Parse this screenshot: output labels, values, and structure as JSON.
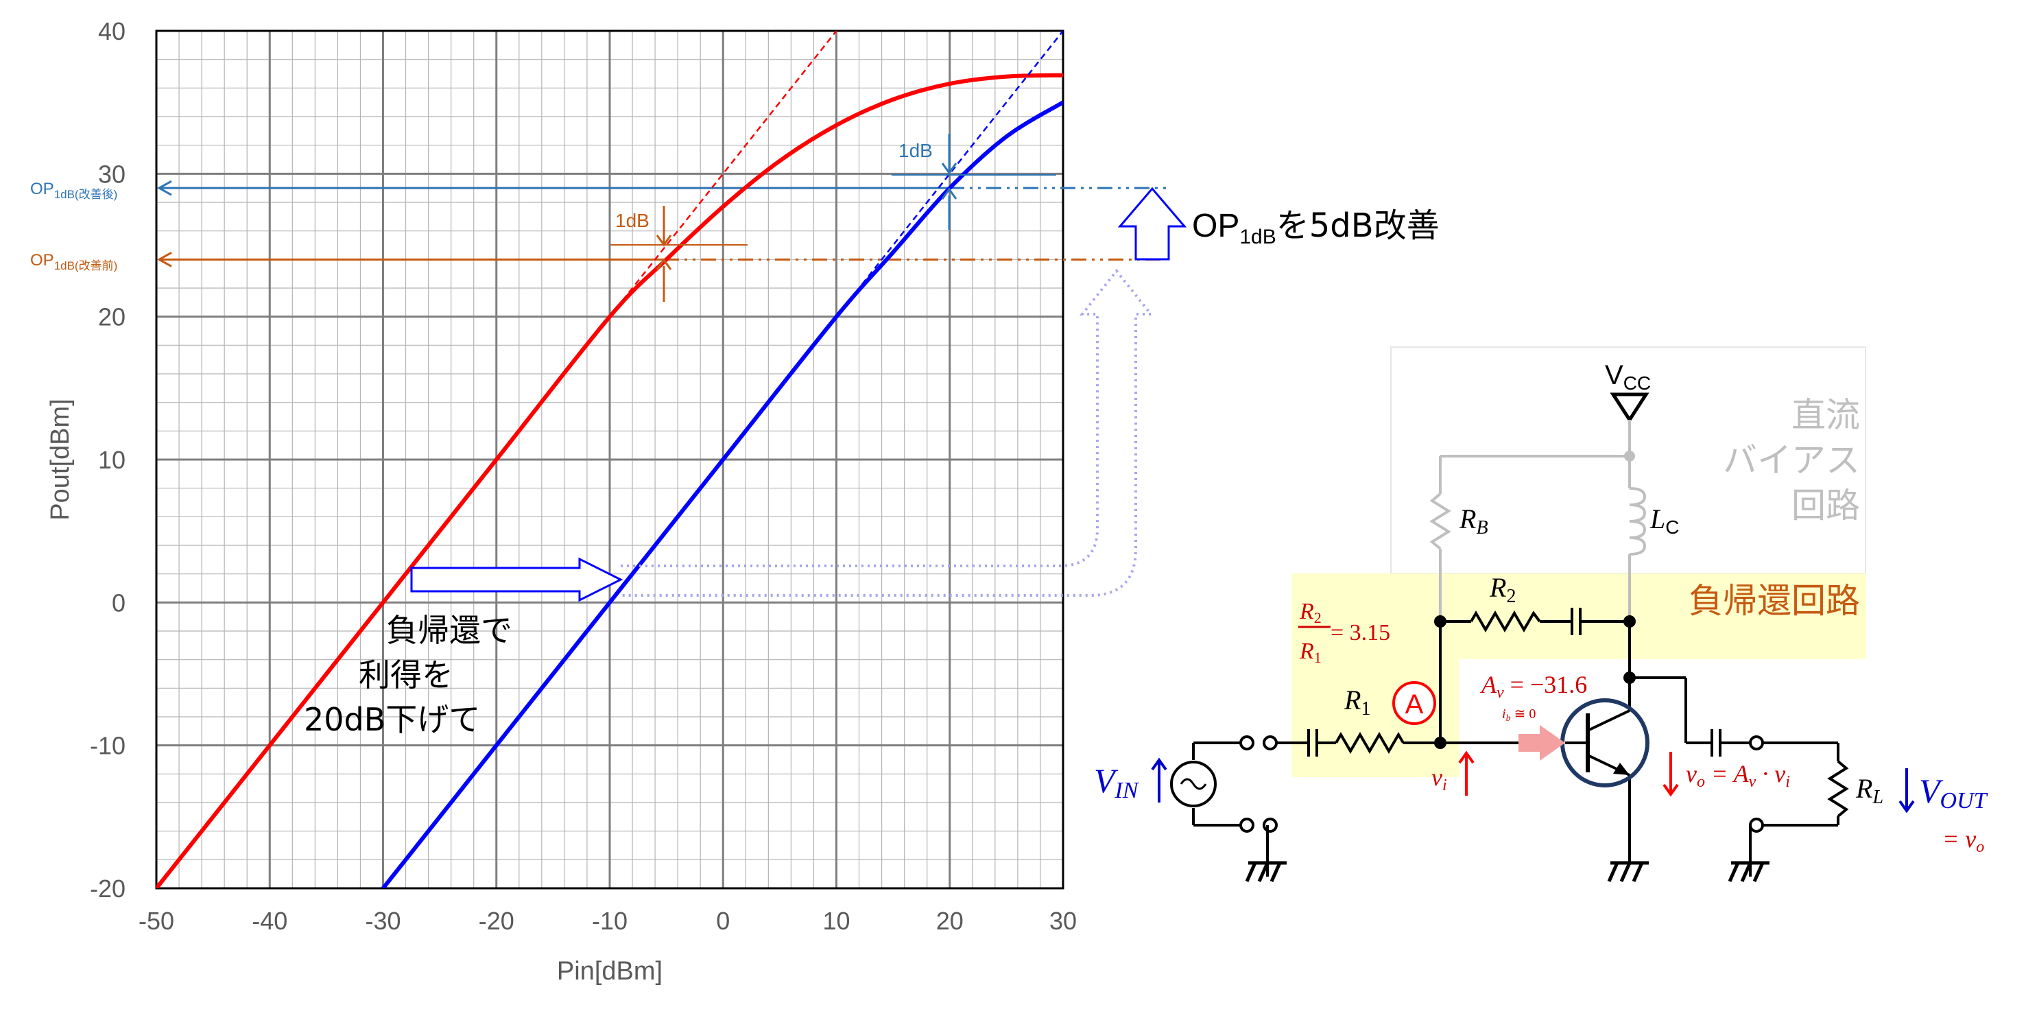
{
  "chart_data": {
    "type": "line",
    "xlabel": "Pin[dBm]",
    "ylabel": "Pout[dBm]",
    "xlim": [
      -50,
      30
    ],
    "ylim": [
      -20,
      40
    ],
    "x_ticks": [
      "-50",
      "-40",
      "-30",
      "-20",
      "-10",
      "0",
      "10",
      "20",
      "30"
    ],
    "y_ticks": [
      "-20",
      "-10",
      "0",
      "10",
      "20",
      "30",
      "40"
    ],
    "grid": true,
    "series": [
      {
        "color": "#ff0000",
        "x": [
          -50,
          -40,
          -30,
          -20,
          -10,
          -5,
          0,
          5,
          10,
          15,
          20,
          25,
          30
        ],
        "y": [
          -20,
          -10,
          0,
          10,
          20,
          24,
          27.7,
          30.9,
          33.4,
          35.2,
          36.3,
          36.8,
          36.9
        ]
      },
      {
        "color": "#0000ff",
        "x": [
          -30,
          -20,
          -10,
          0,
          10,
          15,
          20,
          25,
          30
        ],
        "y": [
          -20,
          -10,
          0,
          10,
          20,
          24.5,
          29,
          32.6,
          35
        ]
      },
      {
        "color": "#ff0000",
        "style": "dashed",
        "x": [
          -10,
          10
        ],
        "y": [
          20,
          40
        ]
      },
      {
        "color": "#0000ff",
        "style": "dashed",
        "x": [
          10,
          30
        ],
        "y": [
          20,
          40
        ]
      }
    ],
    "annotations": {
      "op_after_label": "OP",
      "op_after_sub": "1dB(改善後)",
      "op_before_label": "OP",
      "op_before_sub": "1dB(改善前)",
      "op_after_level": 29,
      "op_before_level": 24,
      "delta_1db_a": "1dB",
      "delta_1db_b": "1dB",
      "improve_main": "OP",
      "improve_sub": "1dB",
      "improve_tail": "を5dB改善",
      "note_line1": "負帰還で",
      "note_line2": "利得を",
      "note_line3": "20dB下げて"
    }
  },
  "colors": {
    "red": "#ff0000",
    "blue": "#0000ff",
    "steel": "#2e75b6",
    "orange": "#c55a11",
    "crimson": "#d00000",
    "grey": "#bfbfbf",
    "yellow": "#ffffcc",
    "navy": "#1f3864"
  },
  "circuit": {
    "bias_title_1": "直流",
    "bias_title_2": "バイアス",
    "bias_title_3": "回路",
    "feedback_title": "負帰還回路",
    "vcc": "V",
    "vcc_sub": "CC",
    "rb": "R",
    "rb_sub": "B",
    "lc": "L",
    "lc_sub": "C",
    "r2": "R",
    "r2_sub": "2",
    "r1": "R",
    "r1_sub": "1",
    "ratio_num": "R",
    "ratio_num_sub": "2",
    "ratio_den": "R",
    "ratio_den_sub": "1",
    "ratio_value": " = 3.15",
    "node_a": "A",
    "gain": " = −31.6",
    "gain_var": "A",
    "gain_sub": "v",
    "ib_note": "i",
    "ib_sub": "b",
    "ib_val": " ≅ 0",
    "vi": "v",
    "vi_sub": "i",
    "vo_expr": " = A",
    "vo_sub": "o",
    "vo_mid": "v",
    "vo_dot": " · v",
    "vo_end": "i",
    "rl": "R",
    "rl_sub": "L",
    "vin": "V",
    "vin_sub": "IN",
    "vout": "V",
    "vout_sub": "OUT",
    "vout_eq": "= v",
    "vout_eq_sub": "o"
  }
}
